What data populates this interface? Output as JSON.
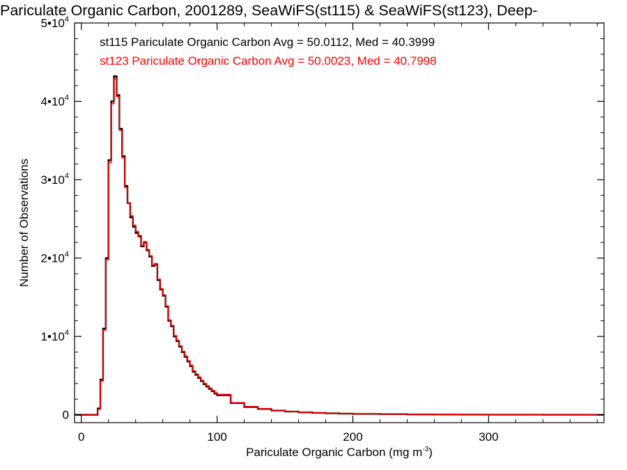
{
  "chart_data": {
    "type": "histogram",
    "title": "Pariculate Organic Carbon, 2001289, SeaWiFS(st115) & SeaWiFS(st123), Deep-",
    "xlabel": "Pariculate Organic Carbon (mg m",
    "xlabel_sup": "-3",
    "xlabel_close": ")",
    "ylabel": "Number of Observations",
    "xlim": [
      -5,
      385
    ],
    "ylim": [
      -1000,
      50000
    ],
    "x_ticks": [
      0,
      100,
      200,
      300
    ],
    "x_tick_labels": [
      "0",
      "100",
      "200",
      "300"
    ],
    "y_ticks": [
      0,
      10000,
      20000,
      30000,
      40000,
      50000
    ],
    "y_tick_labels": [
      {
        "base": "0",
        "exp": ""
      },
      {
        "base": "1•10",
        "exp": "4"
      },
      {
        "base": "2•10",
        "exp": "4"
      },
      {
        "base": "3•10",
        "exp": "4"
      },
      {
        "base": "4•10",
        "exp": "4"
      },
      {
        "base": "5•10",
        "exp": "4"
      }
    ],
    "grid": false,
    "bin_width": 2,
    "annotations": [
      {
        "text": "st115 Pariculate Organic Carbon Avg = 50.0112, Med = 40.3999",
        "color": "#000000"
      },
      {
        "text": "st123 Pariculate Organic Carbon Avg = 50.0023, Med = 40.7998",
        "color": "#ff0000"
      }
    ],
    "series": [
      {
        "name": "st115",
        "color": "#000000",
        "x": [
          10,
          12,
          14,
          16,
          18,
          20,
          22,
          24,
          26,
          28,
          30,
          32,
          34,
          36,
          38,
          40,
          42,
          44,
          46,
          48,
          50,
          52,
          54,
          56,
          58,
          60,
          62,
          64,
          66,
          68,
          70,
          72,
          74,
          76,
          78,
          80,
          82,
          84,
          86,
          88,
          90,
          92,
          94,
          96,
          98,
          100,
          110,
          120,
          130,
          140,
          150,
          160,
          170,
          180,
          190,
          200,
          220,
          240,
          260,
          280,
          300,
          320,
          340,
          360,
          380
        ],
        "values": [
          0,
          800,
          4500,
          11000,
          20000,
          32500,
          40000,
          43200,
          40800,
          36500,
          33000,
          29200,
          27000,
          25200,
          24000,
          23200,
          22800,
          21500,
          22000,
          21000,
          20200,
          19000,
          19200,
          17200,
          16000,
          15200,
          13800,
          12000,
          11300,
          10000,
          9400,
          8700,
          8000,
          7400,
          6800,
          6200,
          5500,
          5100,
          4700,
          4300,
          3900,
          3600,
          3300,
          3000,
          2700,
          2500,
          1500,
          1000,
          750,
          550,
          420,
          320,
          250,
          190,
          150,
          120,
          80,
          50,
          35,
          25,
          18,
          12,
          8,
          6,
          4
        ]
      },
      {
        "name": "st123",
        "color": "#ff0000",
        "x": [
          10,
          12,
          14,
          16,
          18,
          20,
          22,
          24,
          26,
          28,
          30,
          32,
          34,
          36,
          38,
          40,
          42,
          44,
          46,
          48,
          50,
          52,
          54,
          56,
          58,
          60,
          62,
          64,
          66,
          68,
          70,
          72,
          74,
          76,
          78,
          80,
          82,
          84,
          86,
          88,
          90,
          92,
          94,
          96,
          98,
          100,
          110,
          120,
          130,
          140,
          150,
          160,
          170,
          180,
          190,
          200,
          220,
          240,
          260,
          280,
          300,
          320,
          340,
          360,
          380
        ],
        "values": [
          0,
          700,
          4300,
          10800,
          19800,
          32200,
          39700,
          42900,
          40600,
          36300,
          32800,
          29000,
          27000,
          25400,
          24200,
          23400,
          22700,
          21600,
          22100,
          21100,
          20300,
          19100,
          19300,
          17300,
          16100,
          15300,
          13900,
          12100,
          11400,
          10100,
          9500,
          8800,
          8100,
          7500,
          6900,
          6300,
          5600,
          5200,
          4800,
          4400,
          4000,
          3700,
          3400,
          3100,
          2800,
          2600,
          1550,
          1050,
          780,
          570,
          430,
          330,
          260,
          200,
          155,
          125,
          85,
          55,
          38,
          27,
          19,
          13,
          9,
          6,
          4
        ]
      }
    ]
  }
}
